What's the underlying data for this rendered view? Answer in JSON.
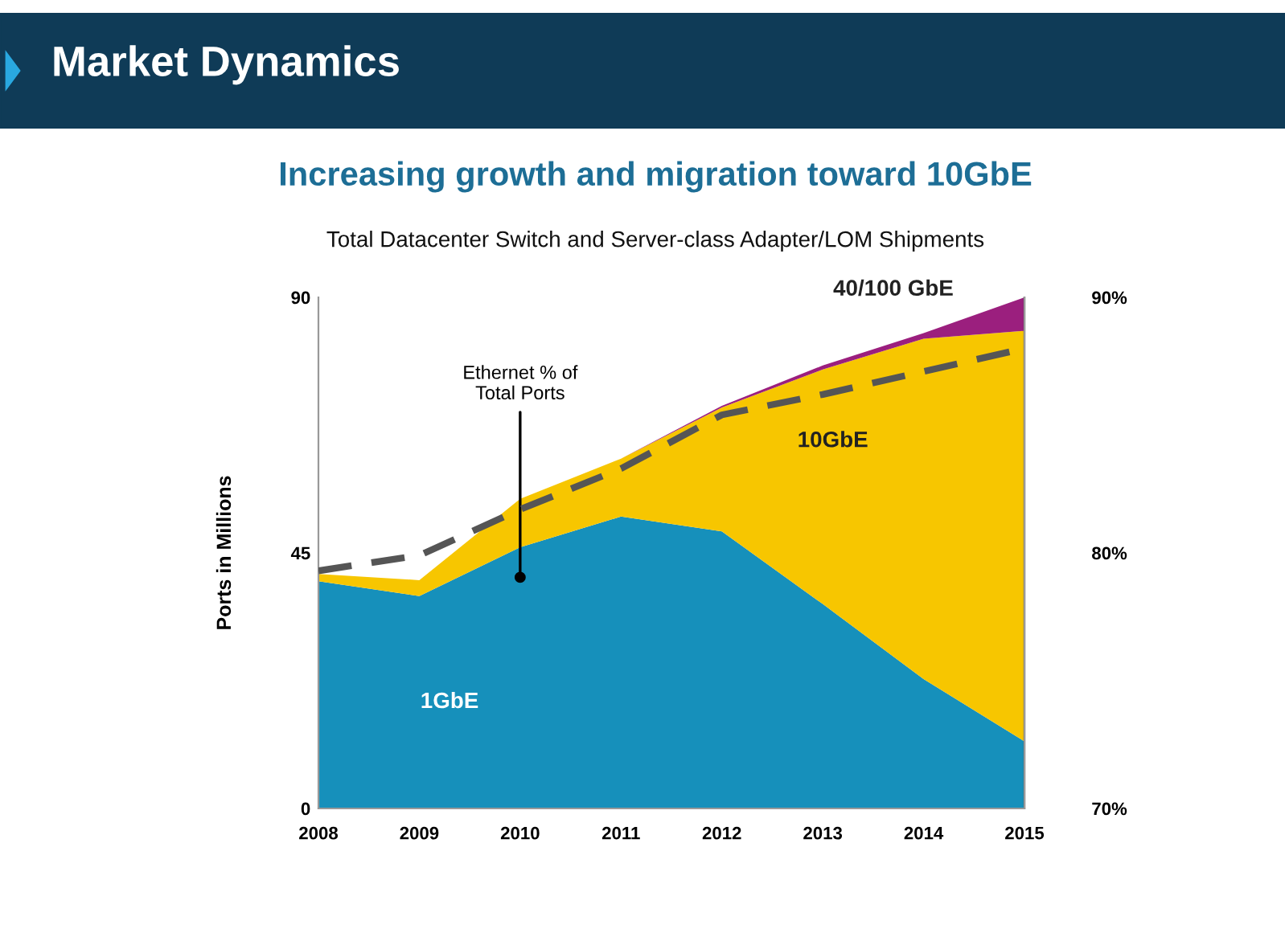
{
  "chart_data": {
    "type": "area",
    "stacked": true,
    "title": "Increasing growth and migration toward 10GbE",
    "subtitle": "Total Datacenter Switch and Server-class Adapter/LOM Shipments",
    "ylabel": "Ports in Millions",
    "x": [
      2008,
      2009,
      2010,
      2011,
      2012,
      2013,
      2014,
      2015
    ],
    "xlim": [
      2008,
      2015
    ],
    "xticks": [
      2008,
      2009,
      2010,
      2011,
      2012,
      2013,
      2014,
      2015
    ],
    "ylim": [
      0,
      90
    ],
    "yticks": [
      0,
      45,
      90
    ],
    "y2lim": [
      70,
      90
    ],
    "y2ticks": [
      {
        "value": 70,
        "label": "70%"
      },
      {
        "value": 80,
        "label": "80%"
      },
      {
        "value": 90,
        "label": "90%"
      }
    ],
    "series": [
      {
        "name": "1GbE",
        "color": "#1690bb",
        "values": [
          40,
          37.4,
          46,
          51.4,
          48.8,
          36,
          22.8,
          11.8
        ]
      },
      {
        "name": "10GbE",
        "color": "#f7c600",
        "values": [
          1.3,
          2.8,
          8.5,
          10.2,
          21.8,
          41.3,
          59.9,
          72.3
        ]
      },
      {
        "name": "40/100 GbE",
        "color": "#9b1f7e",
        "values": [
          0,
          0,
          0,
          0,
          0.3,
          0.7,
          1.0,
          5.9
        ]
      },
      {
        "type": "line",
        "axis": "y2",
        "color": "#555555",
        "line_style": "dashed",
        "values": [
          79.3,
          79.9,
          81.7,
          83.3,
          85.4,
          86.2,
          87.1,
          88.0
        ]
      }
    ],
    "annotations": [
      "Market Dynamics",
      {
        "text": "Ethernet % of\nTotal Ports",
        "x": 2010,
        "y": 40.7
      }
    ],
    "grid": false,
    "legend": false
  }
}
